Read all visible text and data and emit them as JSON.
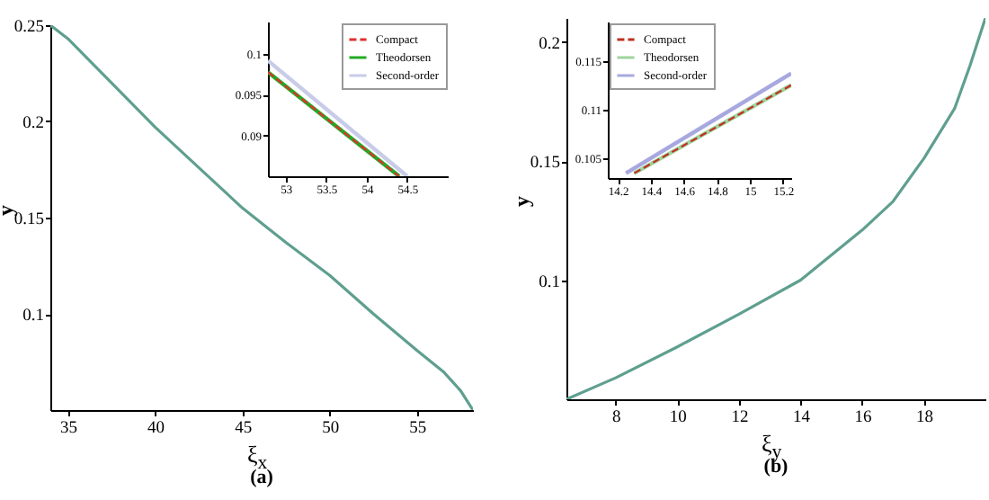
{
  "chart_data": [
    {
      "type": "line",
      "xlabel": "ξ$_{x}$",
      "ylabel": "y",
      "annotations": [
        "(a)"
      ],
      "xlim": [
        34,
        58.2
      ],
      "ylim": [
        0.05,
        0.25
      ],
      "xticks": [
        35,
        40,
        45,
        50,
        55
      ],
      "yticks": [
        0.1,
        0.15,
        0.2,
        0.25
      ],
      "grid": false,
      "legend": false,
      "line_style": "solid",
      "series": [
        {
          "color": "#5f9f8f",
          "x": [
            34,
            35,
            37.5,
            40,
            42.5,
            45,
            47.5,
            50,
            52.5,
            55,
            56.5,
            57.5,
            58.2
          ],
          "values": [
            0.25,
            0.243,
            0.22,
            0.197,
            0.176,
            0.155,
            0.137,
            0.12,
            0.1,
            0.081,
            0.07,
            0.06,
            0.05
          ]
        }
      ]
    },
    {
      "type": "line",
      "xlim": [
        52.78,
        55
      ],
      "ylim": [
        0.085,
        0.104
      ],
      "xticks": [
        53,
        53.5,
        54,
        54.5
      ],
      "yticks": [
        0.09,
        0.095,
        0.1
      ],
      "grid": false,
      "legend": "top right",
      "series": [
        {
          "name": "Compact",
          "color": "#e03030",
          "line_style": "dashed",
          "x": [
            52.78,
            54.4
          ],
          "values": [
            0.0978,
            0.085
          ]
        },
        {
          "name": "Theodorsen",
          "color": "#22aa22",
          "line_style": "solid",
          "x": [
            52.78,
            54.4
          ],
          "values": [
            0.0978,
            0.085
          ]
        },
        {
          "name": "Second-order",
          "color": "#c8cce8",
          "line_style": "solid",
          "x": [
            52.78,
            54.5
          ],
          "values": [
            0.0992,
            0.085
          ]
        }
      ]
    },
    {
      "type": "line",
      "xlabel": "ξ$_{y}$",
      "ylabel": "y",
      "annotations": [
        "(b)"
      ],
      "xlim": [
        6.4,
        20
      ],
      "ylim": [
        0.05,
        0.21
      ],
      "xticks": [
        8,
        10,
        12,
        14,
        16,
        18
      ],
      "yticks": [
        0.1,
        0.15,
        0.2
      ],
      "grid": false,
      "legend": false,
      "line_style": "solid",
      "series": [
        {
          "color": "#5f9f8f",
          "x": [
            6.4,
            8,
            10,
            12,
            14,
            16,
            17,
            18,
            19,
            19.5,
            20
          ],
          "values": [
            0.05,
            0.059,
            0.072,
            0.0857,
            0.1,
            0.121,
            0.133,
            0.151,
            0.172,
            0.19,
            0.21
          ]
        }
      ]
    },
    {
      "type": "line",
      "xlim": [
        14.14,
        15.25
      ],
      "ylim": [
        0.103,
        0.119
      ],
      "xticks": [
        14.2,
        14.4,
        14.6,
        14.8,
        15,
        15.2
      ],
      "yticks": [
        0.105,
        0.11,
        0.115
      ],
      "grid": false,
      "legend": "top left",
      "series": [
        {
          "name": "Compact",
          "color": "#c03020",
          "line_style": "dashed",
          "x": [
            14.3,
            15.25
          ],
          "values": [
            0.1035,
            0.1125
          ]
        },
        {
          "name": "Theodorsen",
          "color": "#9fd49f",
          "line_style": "solid",
          "x": [
            14.3,
            15.25
          ],
          "values": [
            0.1035,
            0.1125
          ]
        },
        {
          "name": "Second-order",
          "color": "#a8a8e0",
          "line_style": "solid",
          "x": [
            14.25,
            15.25
          ],
          "values": [
            0.1035,
            0.1137
          ]
        }
      ]
    }
  ]
}
